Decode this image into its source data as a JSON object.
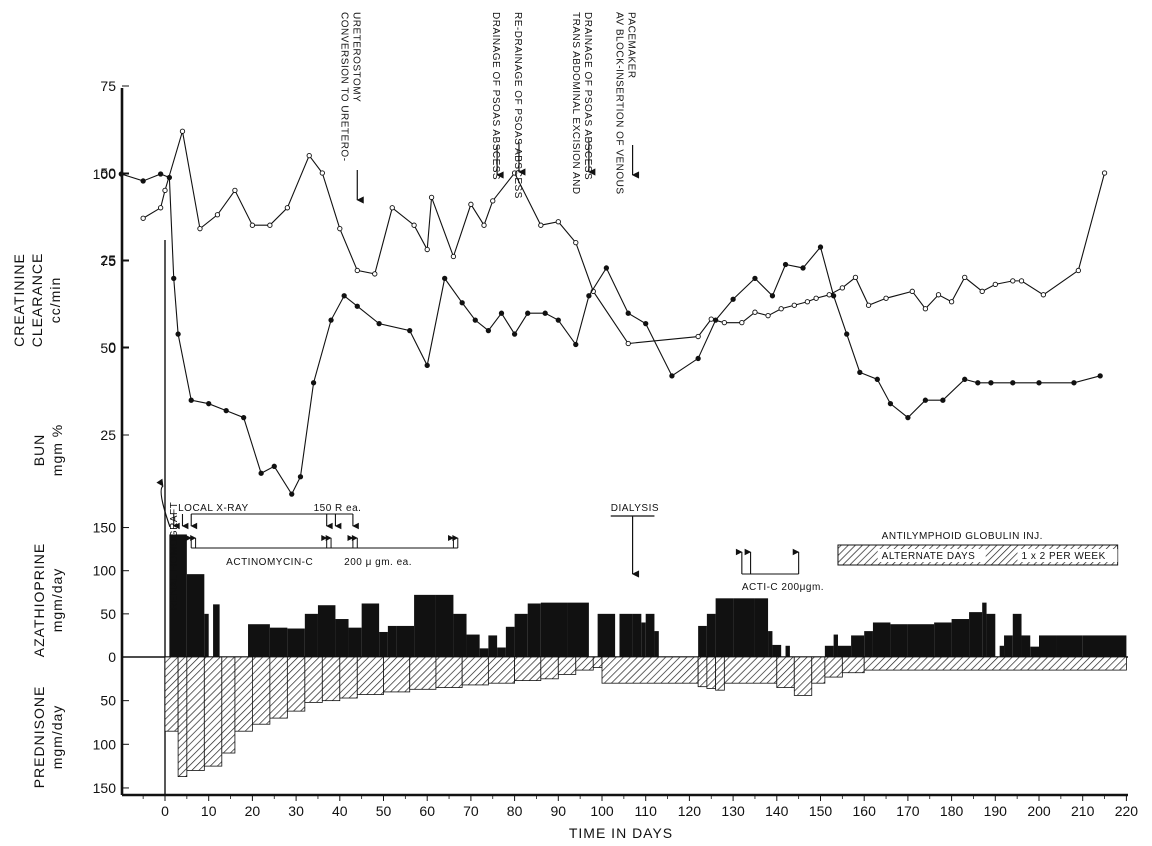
{
  "chart_data": {
    "type": "line",
    "xlabel": "TIME IN DAYS",
    "xlim": [
      -10,
      220
    ],
    "x_ticks": [
      0,
      10,
      20,
      30,
      40,
      50,
      60,
      70,
      80,
      90,
      100,
      110,
      120,
      130,
      140,
      150,
      160,
      170,
      180,
      190,
      200,
      210,
      220
    ],
    "panels": [
      {
        "id": "creatinine",
        "ylabel_lines": [
          "CREATININE",
          "CLEARANCE",
          "cc/min"
        ],
        "ylim": [
          0,
          100
        ],
        "y_ticks": [
          0,
          25,
          50,
          75
        ],
        "type": "line",
        "x": [
          -5,
          -1,
          0,
          4,
          8,
          12,
          16,
          20,
          24,
          28,
          33,
          36,
          40,
          44,
          48,
          52,
          57,
          60,
          61,
          66,
          70,
          73,
          75,
          80,
          86,
          90,
          94,
          98,
          106,
          122,
          125,
          128,
          132,
          135,
          138,
          141,
          144,
          147,
          149,
          152,
          155,
          158,
          161,
          165,
          171,
          174,
          177,
          180,
          183,
          187,
          190,
          194,
          196,
          201,
          209,
          215
        ],
        "y": [
          37,
          40,
          45,
          62,
          34,
          38,
          45,
          35,
          35,
          40,
          55,
          50,
          34,
          22,
          21,
          40,
          35,
          28,
          43,
          26,
          41,
          35,
          42,
          50,
          35,
          36,
          30,
          16,
          1,
          3,
          8,
          7,
          7,
          10,
          9,
          11,
          12,
          13,
          14,
          15,
          17,
          20,
          12,
          14,
          16,
          11,
          15,
          13,
          20,
          16,
          18,
          19,
          19,
          15,
          22,
          50
        ]
      },
      {
        "id": "bun",
        "ylabel_lines": [
          "BUN",
          "mgm %"
        ],
        "ylim": [
          0,
          100
        ],
        "y_ticks": [
          25,
          50,
          75,
          100
        ],
        "type": "line",
        "x": [
          -10,
          -5,
          -1,
          1,
          2,
          3,
          6,
          10,
          14,
          18,
          22,
          25,
          29,
          31,
          34,
          38,
          41,
          44,
          49,
          56,
          60,
          64,
          68,
          71,
          74,
          77,
          80,
          83,
          87,
          90,
          94,
          97,
          101,
          106,
          110,
          116,
          122,
          126,
          130,
          135,
          139,
          142,
          146,
          150,
          153,
          156,
          159,
          163,
          166,
          170,
          174,
          178,
          183,
          186,
          189,
          194,
          200,
          208,
          214
        ],
        "y": [
          100,
          98,
          100,
          99,
          70,
          54,
          35,
          34,
          32,
          30,
          14,
          16,
          8,
          13,
          40,
          58,
          65,
          62,
          57,
          55,
          45,
          70,
          63,
          58,
          55,
          60,
          54,
          60,
          60,
          58,
          51,
          65,
          73,
          60,
          57,
          42,
          47,
          58,
          64,
          70,
          65,
          74,
          73,
          79,
          65,
          54,
          43,
          41,
          34,
          30,
          35,
          35,
          41,
          40,
          40,
          40,
          40,
          40,
          42
        ]
      },
      {
        "id": "azathioprine",
        "ylabel_lines": [
          "AZATHIOPRINE",
          "mgm/day"
        ],
        "ylim": [
          0,
          160
        ],
        "y_ticks": [
          0,
          50,
          100,
          150
        ],
        "type": "bar",
        "bars": [
          {
            "x0": 1,
            "x1": 5,
            "v": 142
          },
          {
            "x0": 5,
            "x1": 9,
            "v": 96
          },
          {
            "x0": 9,
            "x1": 10,
            "v": 50
          },
          {
            "x0": 11,
            "x1": 12.5,
            "v": 61
          },
          {
            "x0": 19,
            "x1": 24,
            "v": 38
          },
          {
            "x0": 24,
            "x1": 28,
            "v": 34
          },
          {
            "x0": 28,
            "x1": 32,
            "v": 33
          },
          {
            "x0": 32,
            "x1": 35,
            "v": 50
          },
          {
            "x0": 35,
            "x1": 39,
            "v": 60
          },
          {
            "x0": 39,
            "x1": 42,
            "v": 44
          },
          {
            "x0": 42,
            "x1": 45,
            "v": 34
          },
          {
            "x0": 45,
            "x1": 49,
            "v": 62
          },
          {
            "x0": 49,
            "x1": 51,
            "v": 29
          },
          {
            "x0": 51,
            "x1": 53,
            "v": 36
          },
          {
            "x0": 53,
            "x1": 57,
            "v": 36
          },
          {
            "x0": 57,
            "x1": 62,
            "v": 72
          },
          {
            "x0": 62,
            "x1": 66,
            "v": 72
          },
          {
            "x0": 66,
            "x1": 69,
            "v": 50
          },
          {
            "x0": 69,
            "x1": 72,
            "v": 26
          },
          {
            "x0": 72,
            "x1": 74,
            "v": 10
          },
          {
            "x0": 74,
            "x1": 76,
            "v": 25
          },
          {
            "x0": 76,
            "x1": 78,
            "v": 11
          },
          {
            "x0": 78,
            "x1": 80,
            "v": 35
          },
          {
            "x0": 80,
            "x1": 83,
            "v": 50
          },
          {
            "x0": 83,
            "x1": 86,
            "v": 62
          },
          {
            "x0": 86,
            "x1": 92,
            "v": 63
          },
          {
            "x0": 92,
            "x1": 97,
            "v": 63
          },
          {
            "x0": 99,
            "x1": 103,
            "v": 50
          },
          {
            "x0": 104,
            "x1": 107,
            "v": 50
          },
          {
            "x0": 107,
            "x1": 109,
            "v": 50
          },
          {
            "x0": 109,
            "x1": 110,
            "v": 40
          },
          {
            "x0": 110,
            "x1": 112,
            "v": 50
          },
          {
            "x0": 112,
            "x1": 113,
            "v": 30
          },
          {
            "x0": 122,
            "x1": 124,
            "v": 36
          },
          {
            "x0": 124,
            "x1": 126,
            "v": 50
          },
          {
            "x0": 126,
            "x1": 130,
            "v": 68
          },
          {
            "x0": 130,
            "x1": 135,
            "v": 68
          },
          {
            "x0": 135,
            "x1": 138,
            "v": 68
          },
          {
            "x0": 138,
            "x1": 139,
            "v": 30
          },
          {
            "x0": 139,
            "x1": 141,
            "v": 14
          },
          {
            "x0": 142,
            "x1": 143,
            "v": 13
          },
          {
            "x0": 151,
            "x1": 153,
            "v": 13
          },
          {
            "x0": 153,
            "x1": 154,
            "v": 26
          },
          {
            "x0": 154,
            "x1": 157,
            "v": 13
          },
          {
            "x0": 157,
            "x1": 160,
            "v": 25
          },
          {
            "x0": 160,
            "x1": 162,
            "v": 30
          },
          {
            "x0": 162,
            "x1": 166,
            "v": 40
          },
          {
            "x0": 166,
            "x1": 170,
            "v": 38
          },
          {
            "x0": 170,
            "x1": 176,
            "v": 38
          },
          {
            "x0": 176,
            "x1": 180,
            "v": 40
          },
          {
            "x0": 180,
            "x1": 184,
            "v": 44
          },
          {
            "x0": 184,
            "x1": 187,
            "v": 52
          },
          {
            "x0": 187,
            "x1": 188,
            "v": 63
          },
          {
            "x0": 188,
            "x1": 190,
            "v": 50
          },
          {
            "x0": 191,
            "x1": 192,
            "v": 13
          },
          {
            "x0": 192,
            "x1": 194,
            "v": 25
          },
          {
            "x0": 194,
            "x1": 196,
            "v": 50
          },
          {
            "x0": 196,
            "x1": 198,
            "v": 25
          },
          {
            "x0": 198,
            "x1": 200,
            "v": 12
          },
          {
            "x0": 200,
            "x1": 204,
            "v": 25
          },
          {
            "x0": 204,
            "x1": 210,
            "v": 25
          },
          {
            "x0": 210,
            "x1": 220,
            "v": 25
          }
        ]
      },
      {
        "id": "prednisone",
        "ylabel_lines": [
          "PREDNISONE",
          "mgm/day"
        ],
        "ylim": [
          0,
          160
        ],
        "y_ticks": [
          50,
          100,
          150
        ],
        "type": "bar",
        "bars": [
          {
            "x0": 0,
            "x1": 3,
            "v": 85
          },
          {
            "x0": 3,
            "x1": 5,
            "v": 137
          },
          {
            "x0": 5,
            "x1": 9,
            "v": 130
          },
          {
            "x0": 9,
            "x1": 13,
            "v": 125
          },
          {
            "x0": 13,
            "x1": 16,
            "v": 110
          },
          {
            "x0": 16,
            "x1": 20,
            "v": 85
          },
          {
            "x0": 20,
            "x1": 24,
            "v": 77
          },
          {
            "x0": 24,
            "x1": 28,
            "v": 70
          },
          {
            "x0": 28,
            "x1": 32,
            "v": 62
          },
          {
            "x0": 32,
            "x1": 36,
            "v": 52
          },
          {
            "x0": 36,
            "x1": 40,
            "v": 50
          },
          {
            "x0": 40,
            "x1": 44,
            "v": 47
          },
          {
            "x0": 44,
            "x1": 50,
            "v": 43
          },
          {
            "x0": 50,
            "x1": 56,
            "v": 40
          },
          {
            "x0": 56,
            "x1": 62,
            "v": 37
          },
          {
            "x0": 62,
            "x1": 68,
            "v": 35
          },
          {
            "x0": 68,
            "x1": 74,
            "v": 32
          },
          {
            "x0": 74,
            "x1": 80,
            "v": 30
          },
          {
            "x0": 80,
            "x1": 86,
            "v": 27
          },
          {
            "x0": 86,
            "x1": 90,
            "v": 25
          },
          {
            "x0": 90,
            "x1": 94,
            "v": 20
          },
          {
            "x0": 94,
            "x1": 98,
            "v": 15
          },
          {
            "x0": 98,
            "x1": 100,
            "v": 12
          },
          {
            "x0": 100,
            "x1": 122,
            "v": 30
          },
          {
            "x0": 122,
            "x1": 124,
            "v": 34
          },
          {
            "x0": 124,
            "x1": 126,
            "v": 36
          },
          {
            "x0": 126,
            "x1": 128,
            "v": 38
          },
          {
            "x0": 128,
            "x1": 140,
            "v": 30
          },
          {
            "x0": 140,
            "x1": 144,
            "v": 35
          },
          {
            "x0": 144,
            "x1": 148,
            "v": 44
          },
          {
            "x0": 148,
            "x1": 151,
            "v": 30
          },
          {
            "x0": 151,
            "x1": 155,
            "v": 23
          },
          {
            "x0": 155,
            "x1": 160,
            "v": 18
          },
          {
            "x0": 160,
            "x1": 220,
            "v": 15
          }
        ]
      }
    ],
    "event_annotations": [
      {
        "lines": [
          "CONVERSION TO URETERO-",
          "URETEROSTOMY"
        ],
        "x": 44
      },
      {
        "lines": [
          "DRAINAGE OF PSOAS ABSCESS"
        ],
        "x": 76
      },
      {
        "lines": [
          "RE-DRAINAGE OF PSOAS ABSCESS"
        ],
        "x": 81
      },
      {
        "lines": [
          "TRANS ABDOMINAL EXCISION AND",
          "DRAINAGE OF PSOAS ABSCESS"
        ],
        "x": 97
      },
      {
        "lines": [
          "AV BLOCK-INSERTION OF VENOUS",
          "PACEMAKER"
        ],
        "x": 107
      }
    ],
    "treatment_annotations": {
      "renal_homograft": "RENAL HOMOGRAFT",
      "local_xray": "LOCAL X-RAY",
      "local_xray_dose": "150 R ea.",
      "local_xray_days": [
        2,
        4,
        6,
        37,
        39,
        43
      ],
      "actinomycin_label": "ACTINOMYCIN-C",
      "actinomycin_dose": "200 μ gm. ea.",
      "actinomycin_days": [
        6,
        7,
        37,
        38,
        43,
        44,
        66,
        67
      ],
      "dialysis": "DIALYSIS",
      "dialysis_day": 107,
      "acti_c": "ACTI-C 200μgm.",
      "acti_c_days": [
        132,
        134,
        145
      ],
      "alg_title": "ANTILYMPHOID GLOBULIN INJ.",
      "alg_left": "ALTERNATE DAYS",
      "alg_right": "1 x 2 PER WEEK"
    }
  }
}
